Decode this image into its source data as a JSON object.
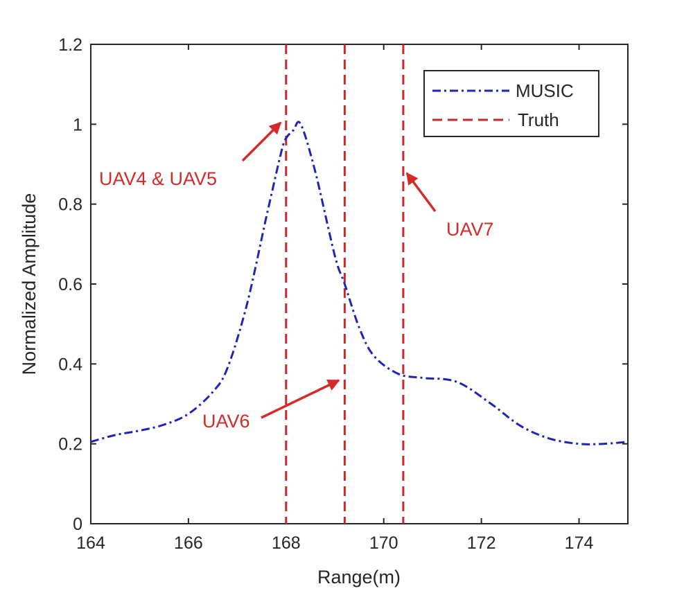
{
  "chart_data": {
    "type": "line",
    "title": "",
    "xlabel": "Range(m)",
    "ylabel": "Normalized Amplitude",
    "xlim": [
      164,
      175
    ],
    "ylim": [
      0,
      1.2
    ],
    "xticks": [
      164,
      166,
      168,
      170,
      172,
      174
    ],
    "yticks": [
      0,
      0.2,
      0.4,
      0.6,
      0.8,
      1,
      1.2
    ],
    "xtick_labels": [
      "164",
      "166",
      "168",
      "170",
      "172",
      "174"
    ],
    "ytick_labels": [
      "0",
      "0.2",
      "0.4",
      "0.6",
      "0.8",
      "1",
      "1.2"
    ],
    "grid": false,
    "legend_position": "top-right",
    "series": [
      {
        "name": "MUSIC",
        "style": "dash-dot",
        "color": "#1f24b8",
        "x": [
          164,
          164.5,
          165,
          165.5,
          166,
          166.5,
          166.8,
          167.2,
          167.6,
          167.9,
          168.0,
          168.15,
          168.3,
          168.6,
          169.0,
          169.2,
          169.5,
          169.8,
          170.3,
          170.8,
          171.5,
          172.2,
          172.8,
          173.4,
          174.0,
          174.5,
          175.0
        ],
        "y": [
          0.205,
          0.222,
          0.233,
          0.248,
          0.275,
          0.33,
          0.39,
          0.55,
          0.77,
          0.93,
          0.965,
          0.985,
          1.0,
          0.88,
          0.67,
          0.6,
          0.49,
          0.42,
          0.375,
          0.365,
          0.355,
          0.3,
          0.245,
          0.213,
          0.2,
          0.2,
          0.205
        ]
      },
      {
        "name": "Truth",
        "style": "dashed",
        "color": "#c8282c",
        "vlines": [
          168.0,
          169.2,
          170.4
        ]
      }
    ],
    "annotations": [
      {
        "text": "UAV4 & UAV5",
        "points_to_x": 168.0,
        "points_to_y": 1.0
      },
      {
        "text": "UAV6",
        "points_to_x": 169.2,
        "points_to_y": 0.36
      },
      {
        "text": "UAV7",
        "points_to_x": 170.4,
        "points_to_y": 0.88
      }
    ]
  },
  "colors": {
    "music": "#1f24b8",
    "truth": "#c8282c",
    "annotation": "#d42a2a",
    "axis": "#262626"
  }
}
